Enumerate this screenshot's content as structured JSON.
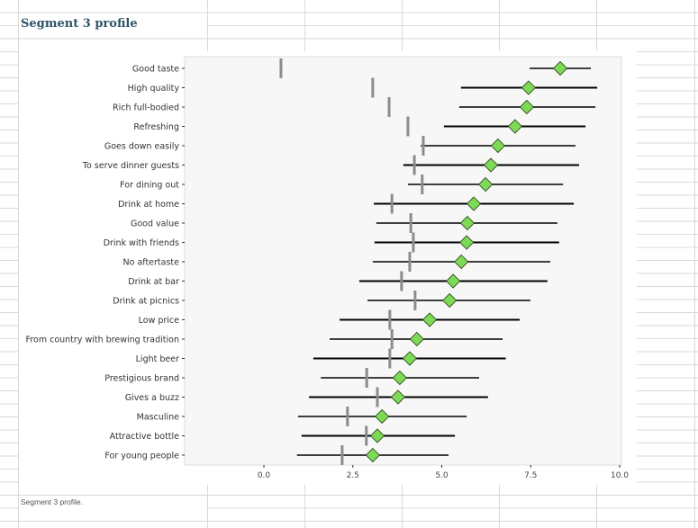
{
  "title": "Segment 3 profile",
  "caption": "Segment 3 profile.",
  "colors": {
    "mean_marker": "#7ed957",
    "interval": "#000000",
    "reference": "#8c8c8c",
    "panel": "#f7f7f7",
    "title": "#2e5566"
  },
  "chart_data": {
    "type": "dot-interval",
    "title": "",
    "xlabel": "",
    "ylabel": "",
    "xlim": [
      -2.2,
      10.0
    ],
    "xticks": [
      "0.0",
      "2.5",
      "5.0",
      "7.5",
      "10.0"
    ],
    "grid": false,
    "legend": "none",
    "categories": [
      "Good taste",
      "High quality",
      "Rich full-bodied",
      "Refreshing",
      "Goes down easily",
      "To serve dinner guests",
      "For dining out",
      "Drink at home",
      "Good value",
      "Drink with friends",
      "No aftertaste",
      "Drink at bar",
      "Drink at picnics",
      "Low price",
      "From country with brewing tradition",
      "Light beer",
      "Prestigious brand",
      "Gives a buzz",
      "Masculine",
      "Attractive bottle",
      "For young people"
    ],
    "mean": [
      8.33,
      7.44,
      7.39,
      7.06,
      6.58,
      6.38,
      6.23,
      5.9,
      5.72,
      5.7,
      5.55,
      5.32,
      5.22,
      4.66,
      4.3,
      4.1,
      3.82,
      3.77,
      3.32,
      3.19,
      3.06
    ],
    "lower": [
      7.47,
      5.54,
      5.49,
      5.06,
      4.41,
      3.92,
      4.05,
      3.09,
      3.16,
      3.11,
      3.06,
      2.68,
      2.91,
      2.13,
      1.85,
      1.39,
      1.6,
      1.27,
      0.96,
      1.06,
      0.93
    ],
    "upper": [
      9.19,
      9.37,
      9.32,
      9.04,
      8.76,
      8.86,
      8.41,
      8.71,
      8.25,
      8.3,
      8.05,
      7.97,
      7.49,
      7.19,
      6.71,
      6.8,
      6.05,
      6.3,
      5.7,
      5.37,
      5.19
    ],
    "reference": [
      0.48,
      3.06,
      3.52,
      4.05,
      4.48,
      4.23,
      4.45,
      3.6,
      4.13,
      4.2,
      4.1,
      3.87,
      4.25,
      3.54,
      3.6,
      3.54,
      2.89,
      3.19,
      2.35,
      2.88,
      2.2
    ]
  }
}
